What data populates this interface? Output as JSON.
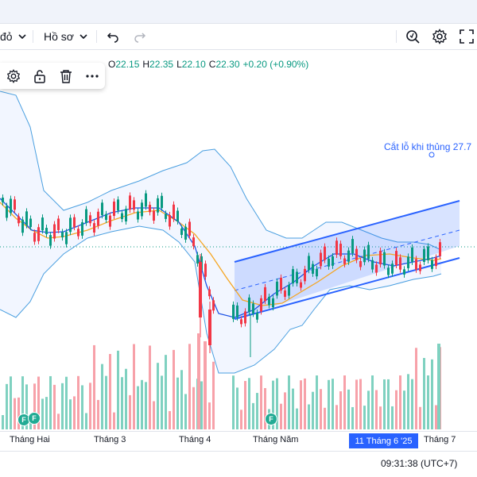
{
  "toolbar": {
    "chart_type_label": "đỏ",
    "templates_label": "Hồ sơ"
  },
  "legend": {
    "o_label": "O",
    "o_value": "22.15",
    "h_label": "H",
    "h_value": "22.35",
    "l_label": "L",
    "l_value": "22.10",
    "c_label": "C",
    "c_value": "22.30",
    "change": "+0.20 (+0.90%)"
  },
  "annotation": {
    "text": "Cắt lỗ khi thủng 27.7"
  },
  "time_axis": {
    "ticks": [
      "Tháng Hai",
      "Tháng 3",
      "Tháng 4",
      "Tháng Năm",
      "Tháng 7"
    ],
    "crosshair_date": "11 Tháng 6 '25"
  },
  "status": {
    "clock": "09:31:38 (UTC+7)"
  },
  "events": {
    "badge_letter": "F"
  },
  "colors": {
    "up": "#089981",
    "down": "#f23645",
    "channel": "#2962ff",
    "bollinger": "#4a9fe0",
    "ma": "#f5a623",
    "volume_up": "#7fd1c0",
    "volume_down": "#f7a1a9"
  },
  "icons": {
    "toolbar": [
      "chevron-down-icon",
      "undo-icon",
      "redo-icon",
      "quick-search-icon",
      "settings-icon",
      "fullscreen-icon"
    ],
    "popup": [
      "settings-icon",
      "unlock-icon",
      "trash-icon",
      "more-icon"
    ]
  }
}
